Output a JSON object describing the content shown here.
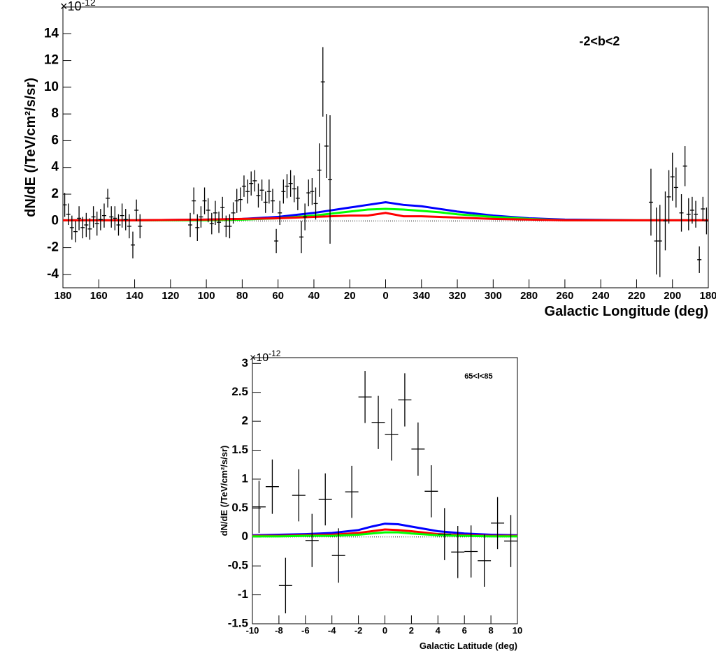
{
  "chart_data": [
    {
      "type": "errorbar",
      "annotation": "-2<b<2",
      "exponent_base": "×10",
      "exponent": "-12",
      "xlabel": "Galactic Longitude (deg)",
      "ylabel": "dN/dE (/TeV/cm²/s/sr)",
      "xlim": [
        180,
        -180
      ],
      "xticks": [
        180,
        160,
        140,
        120,
        100,
        80,
        60,
        40,
        20,
        0,
        {
          "value": -20,
          "label": "340"
        },
        {
          "value": -40,
          "label": "320"
        },
        {
          "value": -60,
          "label": "300"
        },
        {
          "value": -80,
          "label": "280"
        },
        {
          "value": -100,
          "label": "260"
        },
        {
          "value": -120,
          "label": "240"
        },
        {
          "value": -140,
          "label": "220"
        },
        {
          "value": -160,
          "label": "200"
        },
        {
          "value": -180,
          "label": "180"
        }
      ],
      "ylim": [
        -5,
        16
      ],
      "yticks": [
        -4,
        -2,
        0,
        2,
        4,
        6,
        8,
        10,
        12,
        14
      ],
      "points": {
        "color": "#000000",
        "x": [
          179,
          177,
          175,
          173,
          171,
          169,
          167,
          165,
          163,
          161,
          159,
          157,
          155,
          153,
          151,
          149,
          147,
          145,
          143,
          141,
          139,
          137,
          109,
          107,
          105,
          103,
          101,
          99,
          97,
          95,
          93,
          91,
          89,
          87,
          85,
          83,
          81,
          79,
          77,
          75,
          73,
          71,
          69,
          67,
          65,
          63,
          61,
          59,
          57,
          55,
          53,
          51,
          49,
          47,
          45,
          43,
          41,
          39,
          37,
          35,
          33,
          31,
          -148,
          -151,
          -153,
          -156,
          -158,
          -160,
          -162,
          -165,
          -167,
          -169,
          -171,
          -173,
          -175,
          -177,
          -179
        ],
        "values": [
          1.2,
          0.5,
          -0.5,
          -0.8,
          0.2,
          -0.5,
          -0.3,
          -0.6,
          0.3,
          -0.2,
          0.1,
          0.4,
          1.7,
          0.3,
          0.2,
          -0.3,
          0.4,
          0.1,
          -0.4,
          -1.8,
          0.8,
          -0.4,
          -0.3,
          1.5,
          -0.5,
          0.3,
          1.5,
          0.8,
          -0.2,
          0.6,
          -0.1,
          1.0,
          -0.4,
          -0.4,
          0.6,
          1.5,
          1.6,
          2.6,
          2.2,
          2.8,
          3.0,
          1.9,
          2.3,
          1.4,
          2.2,
          1.5,
          -1.5,
          0.6,
          2.2,
          2.6,
          2.8,
          2.4,
          1.7,
          -1.2,
          0.3,
          2.1,
          2.2,
          1.3,
          3.8,
          10.4,
          5.6,
          3.1,
          1.4,
          -1.5,
          -1.5,
          0.0,
          1.8,
          3.3,
          2.5,
          0.6,
          4.1,
          0.5,
          0.8,
          0.5,
          -2.9,
          0.9,
          0.0
        ],
        "errors": [
          0.9,
          0.8,
          0.9,
          0.8,
          0.9,
          0.8,
          0.9,
          0.8,
          0.8,
          0.9,
          0.8,
          0.9,
          0.7,
          0.8,
          0.9,
          0.8,
          0.9,
          0.8,
          0.9,
          1.0,
          0.8,
          0.9,
          0.9,
          1.0,
          1.0,
          0.8,
          1.0,
          0.9,
          0.8,
          0.9,
          0.8,
          0.8,
          0.8,
          0.9,
          0.8,
          0.9,
          0.9,
          0.8,
          0.9,
          0.9,
          0.8,
          0.9,
          0.8,
          0.8,
          0.9,
          0.9,
          0.9,
          0.9,
          0.9,
          0.9,
          1.0,
          1.0,
          0.9,
          1.2,
          1.0,
          1.0,
          1.0,
          1.2,
          2.0,
          2.6,
          2.4,
          4.8,
          2.5,
          2.5,
          2.7,
          2.2,
          2.0,
          1.8,
          1.5,
          1.4,
          1.5,
          1.2,
          1.0,
          1.0,
          1.0,
          0.9,
          1.0
        ]
      },
      "series": [
        {
          "color": "#0000ff",
          "x": [
            180,
            140,
            100,
            80,
            60,
            40,
            20,
            10,
            0,
            -10,
            -20,
            -30,
            -40,
            -60,
            -80,
            -100,
            -140,
            -180
          ],
          "values": [
            0.05,
            0.05,
            0.1,
            0.15,
            0.3,
            0.6,
            1.0,
            1.2,
            1.4,
            1.2,
            1.1,
            0.9,
            0.7,
            0.4,
            0.2,
            0.1,
            0.05,
            0.05
          ]
        },
        {
          "color": "#00ff00",
          "x": [
            180,
            140,
            100,
            80,
            60,
            40,
            20,
            10,
            0,
            -10,
            -20,
            -30,
            -40,
            -60,
            -80,
            -100,
            -140,
            -180
          ],
          "values": [
            0.05,
            0.05,
            0.05,
            0.1,
            0.2,
            0.4,
            0.7,
            0.85,
            0.9,
            0.85,
            0.75,
            0.65,
            0.5,
            0.3,
            0.15,
            0.05,
            0.05,
            0.05
          ]
        },
        {
          "color": "#ff0000",
          "x": [
            180,
            140,
            100,
            80,
            60,
            40,
            20,
            10,
            0,
            -10,
            -20,
            -30,
            -40,
            -60,
            -80,
            -100,
            -140,
            -180
          ],
          "values": [
            0.05,
            0.05,
            0.1,
            0.15,
            0.2,
            0.3,
            0.4,
            0.4,
            0.6,
            0.35,
            0.35,
            0.3,
            0.25,
            0.15,
            0.1,
            0.05,
            0.05,
            0.05
          ]
        }
      ]
    },
    {
      "type": "errorbar",
      "annotation": "65<l<85",
      "exponent_base": "×10",
      "exponent": "-12",
      "xlabel": "Galactic Latitude (deg)",
      "ylabel": "dN/dE (/TeV/cm²/s/sr)",
      "xlim": [
        -10,
        10
      ],
      "xticks": [
        -10,
        -8,
        -6,
        -4,
        -2,
        0,
        2,
        4,
        6,
        8,
        10
      ],
      "ylim": [
        -1.5,
        3.1
      ],
      "yticks": [
        -1.5,
        -1,
        -0.5,
        0,
        0.5,
        1,
        1.5,
        2,
        2.5,
        3
      ],
      "points": {
        "color": "#000000",
        "x": [
          -9.5,
          -8.5,
          -7.5,
          -6.5,
          -5.5,
          -4.5,
          -3.5,
          -2.5,
          -1.5,
          -0.5,
          0.5,
          1.5,
          2.5,
          3.5,
          4.5,
          5.5,
          6.5,
          7.5,
          8.5,
          9.5
        ],
        "values": [
          0.52,
          0.87,
          -0.84,
          0.72,
          -0.06,
          0.65,
          -0.32,
          0.78,
          2.42,
          1.98,
          1.77,
          2.37,
          1.52,
          0.79,
          0.05,
          -0.26,
          -0.25,
          -0.41,
          0.24,
          -0.07
        ],
        "errors": [
          0.45,
          0.47,
          0.48,
          0.45,
          0.46,
          0.45,
          0.47,
          0.45,
          0.45,
          0.46,
          0.45,
          0.46,
          0.46,
          0.45,
          0.45,
          0.45,
          0.45,
          0.45,
          0.45,
          0.45
        ],
        "x_errors": [
          0.5,
          0.5,
          0.5,
          0.5,
          0.5,
          0.5,
          0.5,
          0.5,
          0.5,
          0.5,
          0.5,
          0.5,
          0.5,
          0.5,
          0.5,
          0.5,
          0.5,
          0.5,
          0.5,
          0.5
        ]
      },
      "series": [
        {
          "color": "#0000ff",
          "x": [
            -10,
            -8,
            -6,
            -4,
            -2,
            -1,
            0,
            1,
            2,
            4,
            6,
            8,
            10
          ],
          "values": [
            0.03,
            0.04,
            0.05,
            0.07,
            0.12,
            0.18,
            0.23,
            0.22,
            0.18,
            0.1,
            0.06,
            0.04,
            0.03
          ]
        },
        {
          "color": "#ff0000",
          "x": [
            -10,
            -8,
            -6,
            -4,
            -2,
            -1,
            0,
            1,
            2,
            4,
            6,
            8,
            10
          ],
          "values": [
            0.02,
            0.02,
            0.03,
            0.04,
            0.07,
            0.1,
            0.13,
            0.12,
            0.1,
            0.05,
            0.03,
            0.02,
            0.02
          ]
        },
        {
          "color": "#00ff00",
          "x": [
            -10,
            -8,
            -6,
            -4,
            -2,
            -1,
            0,
            1,
            2,
            4,
            6,
            8,
            10
          ],
          "values": [
            0.01,
            0.01,
            0.02,
            0.02,
            0.04,
            0.06,
            0.08,
            0.08,
            0.06,
            0.03,
            0.02,
            0.01,
            0.01
          ]
        }
      ]
    }
  ]
}
